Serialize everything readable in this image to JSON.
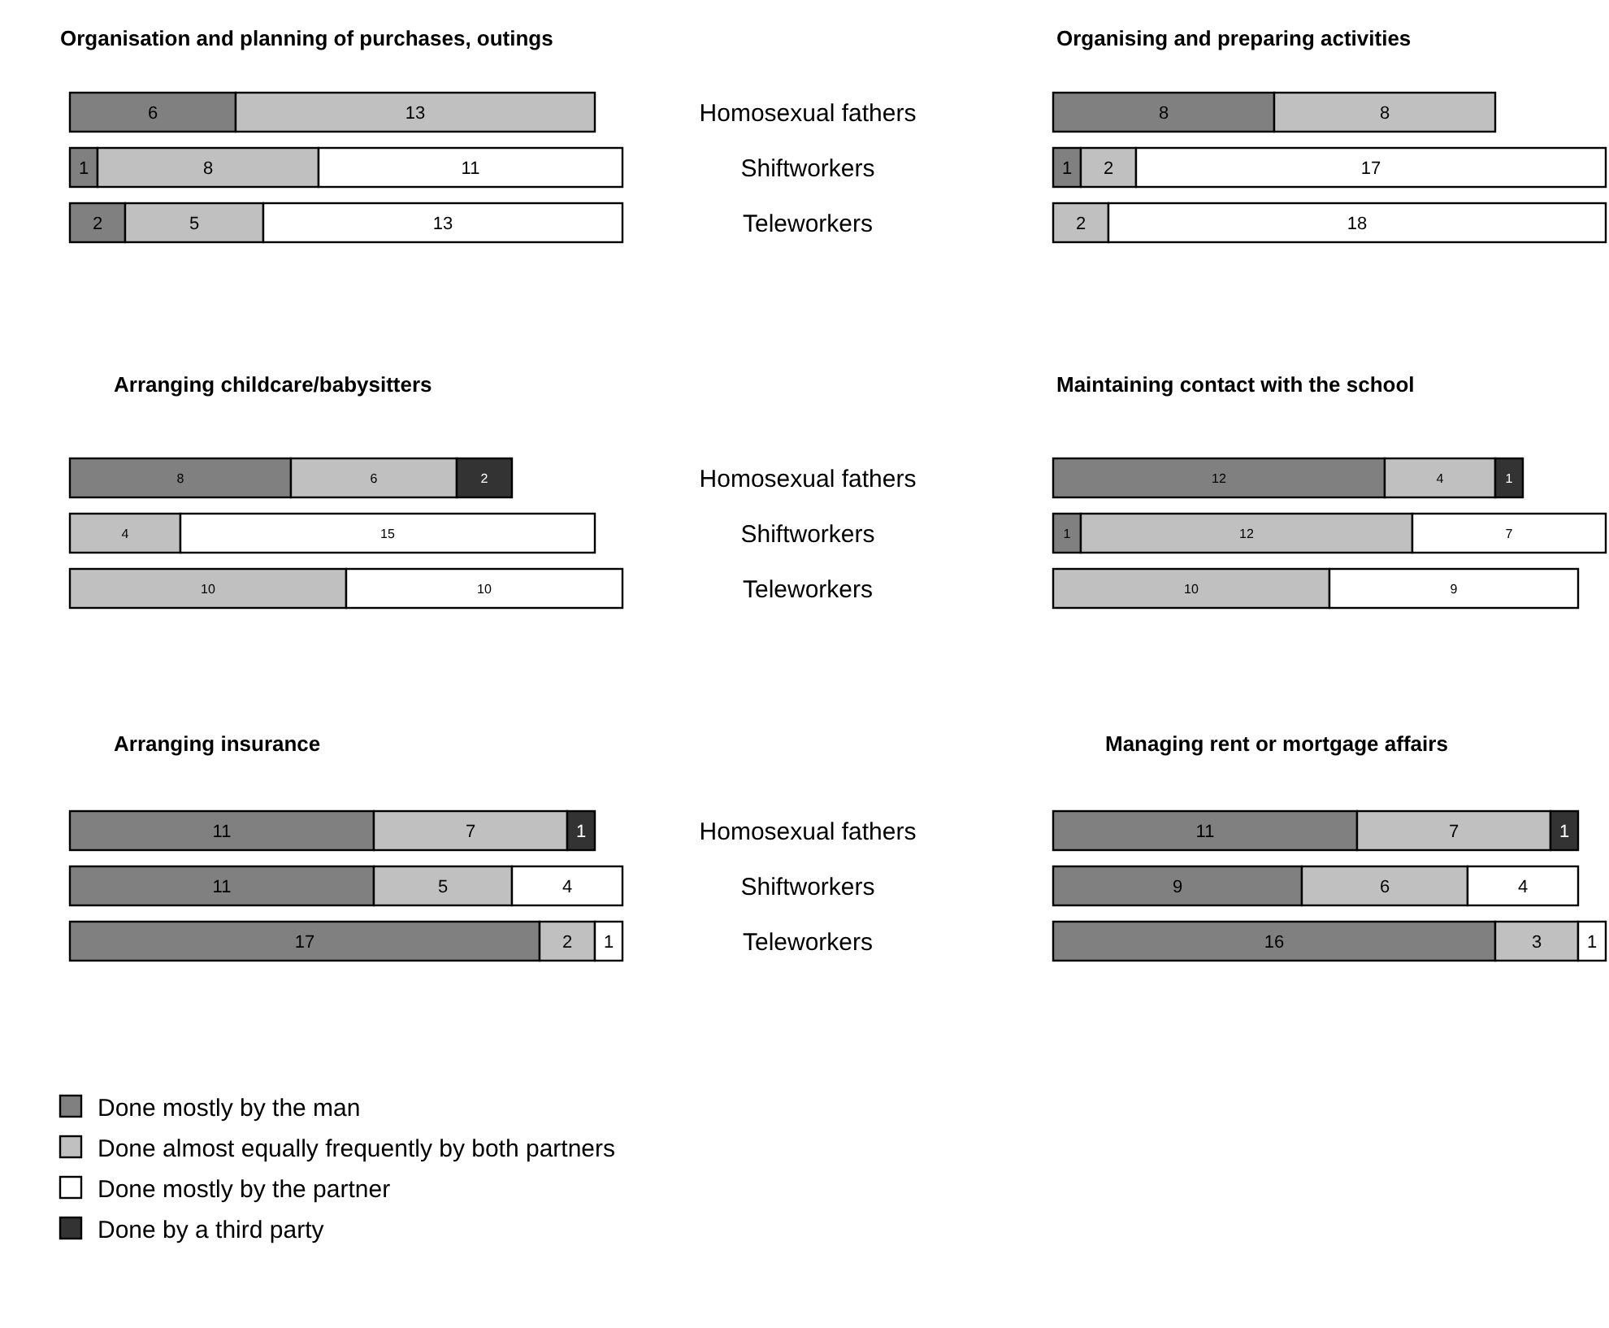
{
  "chart_data": [
    {
      "type": "bar",
      "orientation": "horizontal",
      "stacked": true,
      "data_labels": true,
      "tick_labels": "y",
      "title": "Organisation and planning of purchases, outings",
      "categories": [
        "Homosexual fathers",
        "Shiftworkers",
        "Teleworkers"
      ],
      "series": [
        {
          "color": "#808080",
          "values": [
            6,
            1,
            2
          ]
        },
        {
          "color": "#c0c0c0",
          "values": [
            13,
            8,
            5
          ]
        },
        {
          "color": "#ffffff",
          "values": [
            null,
            11,
            13
          ]
        }
      ]
    },
    {
      "type": "bar",
      "orientation": "horizontal",
      "stacked": true,
      "data_labels": true,
      "tick_labels": false,
      "title": "Organising and preparing activities",
      "categories": [
        null,
        null,
        null
      ],
      "series": [
        {
          "color": "#808080",
          "values": [
            8,
            1,
            null
          ]
        },
        {
          "color": "#c0c0c0",
          "values": [
            8,
            2,
            2
          ]
        },
        {
          "color": "#ffffff",
          "values": [
            null,
            17,
            18
          ]
        }
      ]
    },
    {
      "type": "bar",
      "orientation": "horizontal",
      "stacked": true,
      "data_labels": true,
      "tick_labels": "y",
      "title": "Arranging childcare/babysitters",
      "categories": [
        "Homosexual fathers",
        "Shiftworkers",
        "Teleworkers"
      ],
      "series": [
        {
          "color": "#808080",
          "values": [
            8,
            null,
            null
          ]
        },
        {
          "color": "#c0c0c0",
          "values": [
            6,
            4,
            10
          ]
        },
        {
          "color": "#ffffff",
          "values": [
            null,
            15,
            10
          ]
        },
        {
          "color": "#333333",
          "values": [
            2,
            null,
            null
          ]
        }
      ]
    },
    {
      "type": "bar",
      "orientation": "horizontal",
      "stacked": true,
      "data_labels": true,
      "tick_labels": false,
      "title": "Maintaining contact with the school",
      "categories": [
        null,
        null,
        null
      ],
      "series": [
        {
          "color": "#808080",
          "values": [
            12,
            1,
            null
          ]
        },
        {
          "color": "#c0c0c0",
          "values": [
            4,
            12,
            10
          ]
        },
        {
          "color": "#ffffff",
          "values": [
            null,
            7,
            9
          ]
        },
        {
          "color": "#333333",
          "values": [
            1,
            null,
            null
          ]
        }
      ]
    },
    {
      "type": "bar",
      "orientation": "horizontal",
      "stacked": true,
      "data_labels": true,
      "tick_labels": "y",
      "legend": "bottom",
      "title": "Arranging insurance",
      "categories": [
        "Homosexual fathers",
        "Shiftworkers",
        "Teleworkers"
      ],
      "series": [
        {
          "name": "Done mostly by the man",
          "color": "#808080",
          "values": [
            11,
            11,
            17
          ]
        },
        {
          "name": "Done almost equally frequently by both partners",
          "color": "#c0c0c0",
          "values": [
            7,
            5,
            2
          ]
        },
        {
          "name": "Done mostly by the partner",
          "color": "#ffffff",
          "values": [
            null,
            4,
            1
          ]
        },
        {
          "name": "Done by a third party",
          "color": "#333333",
          "values": [
            1,
            null,
            null
          ]
        }
      ]
    },
    {
      "type": "bar",
      "orientation": "horizontal",
      "stacked": true,
      "data_labels": true,
      "tick_labels": false,
      "title": "Managing rent or mortgage affairs",
      "categories": [
        null,
        null,
        null
      ],
      "series": [
        {
          "color": "#808080",
          "values": [
            11,
            9,
            16
          ]
        },
        {
          "color": "#c0c0c0",
          "values": [
            7,
            6,
            3
          ]
        },
        {
          "color": "#ffffff",
          "values": [
            null,
            4,
            1
          ]
        },
        {
          "color": "#333333",
          "values": [
            1,
            null,
            null
          ]
        }
      ]
    }
  ]
}
